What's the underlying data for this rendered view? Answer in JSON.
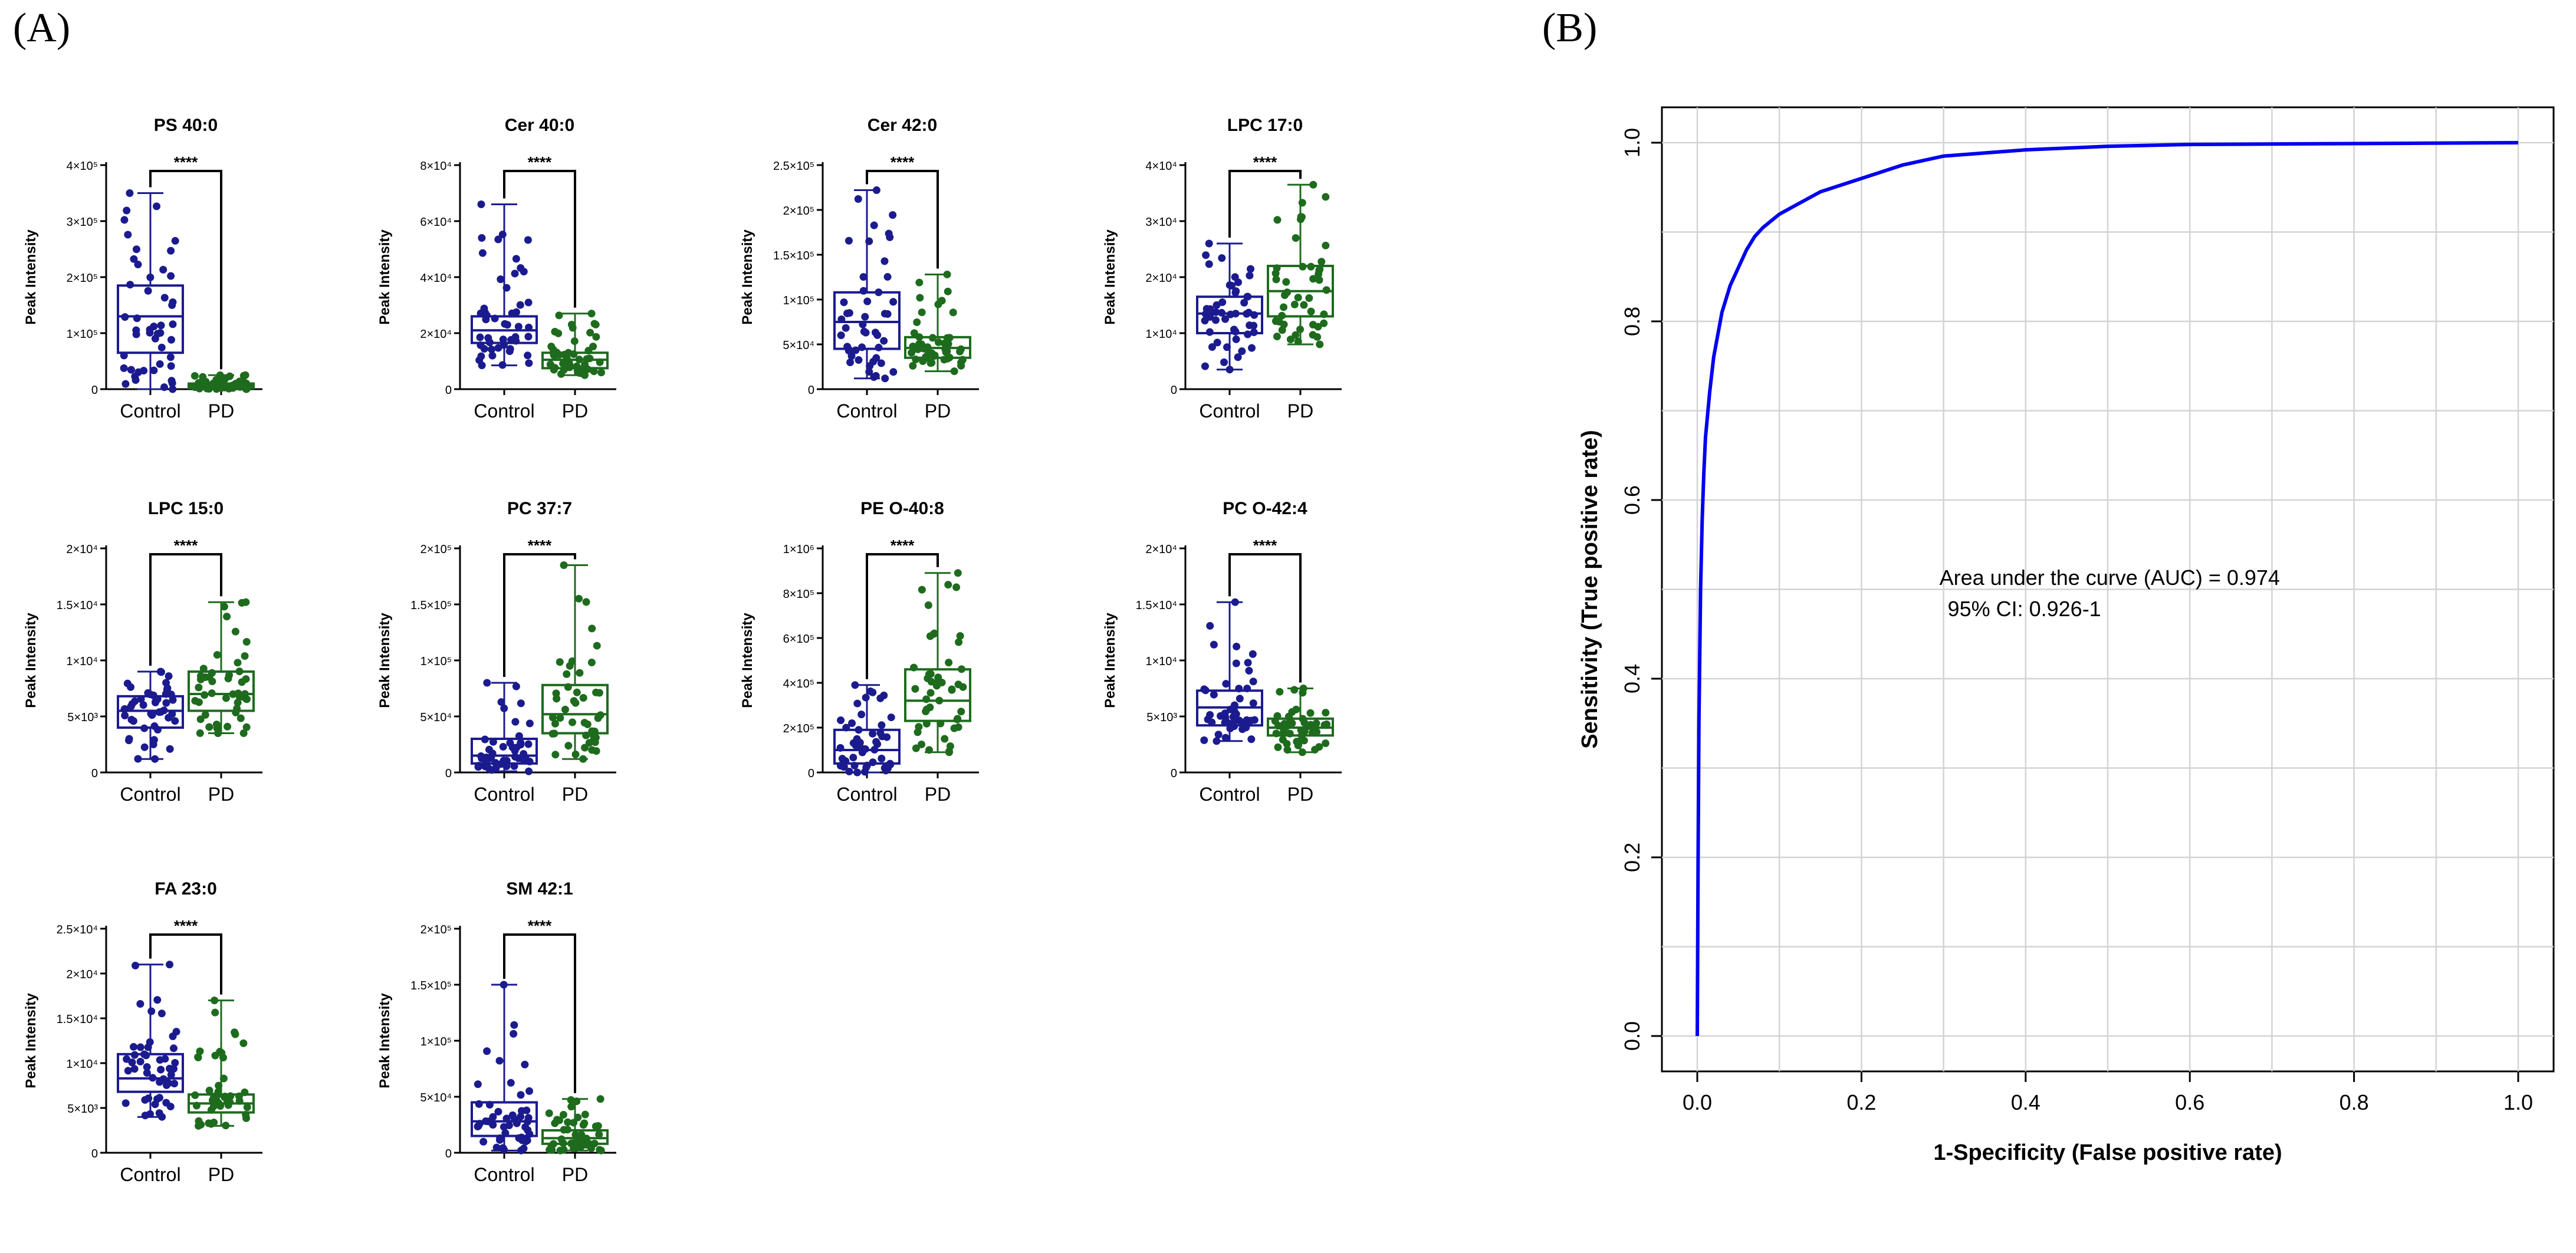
{
  "panels": {
    "a": "(A)",
    "b": "(B)"
  },
  "colors": {
    "control": "#1b1b8f",
    "pd": "#1e6b1e",
    "roc": "#0000ee",
    "grid": "#d3d3d3"
  },
  "chart_data": [
    {
      "type": "box",
      "panel": "A",
      "title": "PS 40:0",
      "ylabel": "Peak Intensity",
      "categories": [
        "Control",
        "PD"
      ],
      "significance": "****",
      "ylim": [
        0,
        400000
      ],
      "yticks": [
        {
          "v": 0,
          "label": "0"
        },
        {
          "v": 100000,
          "label": "1×10⁵"
        },
        {
          "v": 200000,
          "label": "2×10⁵"
        },
        {
          "v": 300000,
          "label": "3×10⁵"
        },
        {
          "v": 400000,
          "label": "4×10⁵"
        }
      ],
      "groups": [
        {
          "name": "Control",
          "min": 0,
          "q1": 65000,
          "median": 130000,
          "q3": 185000,
          "max": 350000
        },
        {
          "name": "PD",
          "min": 0,
          "q1": 2000,
          "median": 6000,
          "q3": 10000,
          "max": 25000
        }
      ]
    },
    {
      "type": "box",
      "panel": "A",
      "title": "Cer 40:0",
      "ylabel": "Peak Intensity",
      "categories": [
        "Control",
        "PD"
      ],
      "significance": "****",
      "ylim": [
        0,
        80000
      ],
      "yticks": [
        {
          "v": 0,
          "label": "0"
        },
        {
          "v": 20000,
          "label": "2×10⁴"
        },
        {
          "v": 40000,
          "label": "4×10⁴"
        },
        {
          "v": 60000,
          "label": "6×10⁴"
        },
        {
          "v": 80000,
          "label": "8×10⁴"
        }
      ],
      "groups": [
        {
          "name": "Control",
          "min": 8500,
          "q1": 16500,
          "median": 21000,
          "q3": 26000,
          "max": 66000
        },
        {
          "name": "PD",
          "min": 5000,
          "q1": 7500,
          "median": 10500,
          "q3": 13000,
          "max": 27000
        }
      ]
    },
    {
      "type": "box",
      "panel": "A",
      "title": "Cer 42:0",
      "ylabel": "Peak Intensity",
      "categories": [
        "Control",
        "PD"
      ],
      "significance": "****",
      "ylim": [
        0,
        250000
      ],
      "yticks": [
        {
          "v": 0,
          "label": "0"
        },
        {
          "v": 50000,
          "label": "5×10⁴"
        },
        {
          "v": 100000,
          "label": "1×10⁵"
        },
        {
          "v": 150000,
          "label": "1.5×10⁵"
        },
        {
          "v": 200000,
          "label": "2×10⁵"
        },
        {
          "v": 250000,
          "label": "2.5×10⁵"
        }
      ],
      "groups": [
        {
          "name": "Control",
          "min": 12000,
          "q1": 45000,
          "median": 75000,
          "q3": 108000,
          "max": 222000
        },
        {
          "name": "PD",
          "min": 20000,
          "q1": 35000,
          "median": 46000,
          "q3": 58000,
          "max": 128000
        }
      ]
    },
    {
      "type": "box",
      "panel": "A",
      "title": "LPC 17:0",
      "ylabel": "Peak Intensity",
      "categories": [
        "Control",
        "PD"
      ],
      "significance": "****",
      "ylim": [
        0,
        40000
      ],
      "yticks": [
        {
          "v": 0,
          "label": "0"
        },
        {
          "v": 10000,
          "label": "1×10⁴"
        },
        {
          "v": 20000,
          "label": "2×10⁴"
        },
        {
          "v": 30000,
          "label": "3×10⁴"
        },
        {
          "v": 40000,
          "label": "4×10⁴"
        }
      ],
      "groups": [
        {
          "name": "Control",
          "min": 3500,
          "q1": 10000,
          "median": 13500,
          "q3": 16500,
          "max": 26000
        },
        {
          "name": "PD",
          "min": 8000,
          "q1": 13000,
          "median": 17500,
          "q3": 22000,
          "max": 36500
        }
      ]
    },
    {
      "type": "box",
      "panel": "A",
      "title": "LPC 15:0",
      "ylabel": "Peak Intensity",
      "categories": [
        "Control",
        "PD"
      ],
      "significance": "****",
      "ylim": [
        0,
        20000
      ],
      "yticks": [
        {
          "v": 0,
          "label": "0"
        },
        {
          "v": 5000,
          "label": "5×10³"
        },
        {
          "v": 10000,
          "label": "1×10⁴"
        },
        {
          "v": 15000,
          "label": "1.5×10⁴"
        },
        {
          "v": 20000,
          "label": "2×10⁴"
        }
      ],
      "groups": [
        {
          "name": "Control",
          "min": 1200,
          "q1": 4000,
          "median": 5500,
          "q3": 6800,
          "max": 9000
        },
        {
          "name": "PD",
          "min": 3500,
          "q1": 5500,
          "median": 7000,
          "q3": 9000,
          "max": 15200
        }
      ]
    },
    {
      "type": "box",
      "panel": "A",
      "title": "PC 37:7",
      "ylabel": "Peak Intensity",
      "categories": [
        "Control",
        "PD"
      ],
      "significance": "****",
      "ylim": [
        0,
        200000
      ],
      "yticks": [
        {
          "v": 0,
          "label": "0"
        },
        {
          "v": 50000,
          "label": "5×10⁴"
        },
        {
          "v": 100000,
          "label": "1×10⁵"
        },
        {
          "v": 150000,
          "label": "1.5×10⁵"
        },
        {
          "v": 200000,
          "label": "2×10⁵"
        }
      ],
      "groups": [
        {
          "name": "Control",
          "min": 1000,
          "q1": 8000,
          "median": 15000,
          "q3": 30000,
          "max": 80000
        },
        {
          "name": "PD",
          "min": 12000,
          "q1": 35000,
          "median": 52000,
          "q3": 78000,
          "max": 185000
        }
      ]
    },
    {
      "type": "box",
      "panel": "A",
      "title": "PE O-40:8",
      "ylabel": "Peak Intensity",
      "categories": [
        "Control",
        "PD"
      ],
      "significance": "****",
      "ylim": [
        0,
        1000000
      ],
      "yticks": [
        {
          "v": 0,
          "label": "0"
        },
        {
          "v": 200000,
          "label": "2×10⁵"
        },
        {
          "v": 400000,
          "label": "4×10⁵"
        },
        {
          "v": 600000,
          "label": "6×10⁵"
        },
        {
          "v": 800000,
          "label": "8×10⁵"
        },
        {
          "v": 1000000,
          "label": "1×10⁶"
        }
      ],
      "groups": [
        {
          "name": "Control",
          "min": 0,
          "q1": 40000,
          "median": 100000,
          "q3": 190000,
          "max": 390000
        },
        {
          "name": "PD",
          "min": 90000,
          "q1": 230000,
          "median": 320000,
          "q3": 460000,
          "max": 890000
        }
      ]
    },
    {
      "type": "box",
      "panel": "A",
      "title": "PC O-42:4",
      "ylabel": "Peak Intensity",
      "categories": [
        "Control",
        "PD"
      ],
      "significance": "****",
      "ylim": [
        0,
        20000
      ],
      "yticks": [
        {
          "v": 0,
          "label": "0"
        },
        {
          "v": 5000,
          "label": "5×10³"
        },
        {
          "v": 10000,
          "label": "1×10⁴"
        },
        {
          "v": 15000,
          "label": "1.5×10⁴"
        },
        {
          "v": 20000,
          "label": "2×10⁴"
        }
      ],
      "groups": [
        {
          "name": "Control",
          "min": 2800,
          "q1": 4200,
          "median": 5800,
          "q3": 7300,
          "max": 15200
        },
        {
          "name": "PD",
          "min": 1800,
          "q1": 3300,
          "median": 4000,
          "q3": 4800,
          "max": 7500
        }
      ]
    },
    {
      "type": "box",
      "panel": "A",
      "title": "FA 23:0",
      "ylabel": "Peak Intensity",
      "categories": [
        "Control",
        "PD"
      ],
      "significance": "****",
      "ylim": [
        0,
        25000
      ],
      "yticks": [
        {
          "v": 0,
          "label": "0"
        },
        {
          "v": 5000,
          "label": "5×10³"
        },
        {
          "v": 10000,
          "label": "1×10⁴"
        },
        {
          "v": 15000,
          "label": "1.5×10⁴"
        },
        {
          "v": 20000,
          "label": "2×10⁴"
        },
        {
          "v": 25000,
          "label": "2.5×10⁴"
        }
      ],
      "groups": [
        {
          "name": "Control",
          "min": 4000,
          "q1": 6800,
          "median": 8300,
          "q3": 11000,
          "max": 21000
        },
        {
          "name": "PD",
          "min": 3000,
          "q1": 4500,
          "median": 5500,
          "q3": 6500,
          "max": 17000
        }
      ]
    },
    {
      "type": "box",
      "panel": "A",
      "title": "SM 42:1",
      "ylabel": "Peak Intensity",
      "categories": [
        "Control",
        "PD"
      ],
      "significance": "****",
      "ylim": [
        0,
        200000
      ],
      "yticks": [
        {
          "v": 0,
          "label": "0"
        },
        {
          "v": 50000,
          "label": "5×10⁴"
        },
        {
          "v": 100000,
          "label": "1×10⁵"
        },
        {
          "v": 150000,
          "label": "1.5×10⁵"
        },
        {
          "v": 200000,
          "label": "2×10⁵"
        }
      ],
      "groups": [
        {
          "name": "Control",
          "min": 2000,
          "q1": 15000,
          "median": 28000,
          "q3": 45000,
          "max": 150000
        },
        {
          "name": "PD",
          "min": 2000,
          "q1": 8000,
          "median": 13000,
          "q3": 20000,
          "max": 48000
        }
      ]
    },
    {
      "type": "line",
      "panel": "B",
      "title": "",
      "xlabel": "1-Specificity (False positive rate)",
      "ylabel": "Sensitivity (True positive rate)",
      "xlim": [
        0,
        1
      ],
      "ylim": [
        0,
        1
      ],
      "grid": true,
      "xticks": [
        "0.0",
        "0.2",
        "0.4",
        "0.6",
        "0.8",
        "1.0"
      ],
      "yticks": [
        "0.0",
        "0.2",
        "0.4",
        "0.6",
        "0.8",
        "1.0"
      ],
      "annotation": [
        "Area under the curve (AUC) = 0.974",
        "95% CI: 0.926-1"
      ],
      "series": [
        {
          "name": "ROC",
          "x": [
            0,
            0.001,
            0.002,
            0.004,
            0.006,
            0.008,
            0.01,
            0.015,
            0.02,
            0.03,
            0.04,
            0.05,
            0.06,
            0.07,
            0.08,
            0.1,
            0.12,
            0.15,
            0.2,
            0.25,
            0.3,
            0.4,
            0.5,
            0.6,
            0.8,
            1.0
          ],
          "y": [
            0,
            0.2,
            0.35,
            0.5,
            0.58,
            0.63,
            0.67,
            0.72,
            0.76,
            0.81,
            0.84,
            0.86,
            0.88,
            0.895,
            0.905,
            0.92,
            0.93,
            0.945,
            0.96,
            0.975,
            0.985,
            0.992,
            0.996,
            0.998,
            0.999,
            1.0
          ]
        }
      ]
    }
  ]
}
